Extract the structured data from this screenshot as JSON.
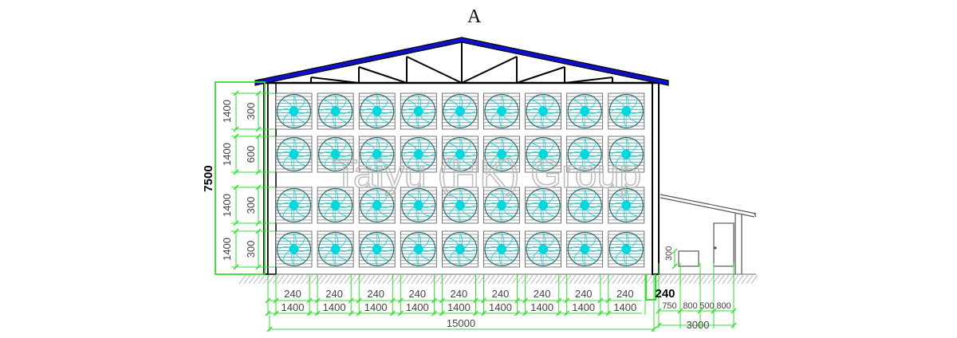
{
  "drawing": {
    "view_label": "A",
    "watermark": "Taiyu (HK) Group",
    "colors": {
      "roof": "#1010c8",
      "dimension": "#33dd33",
      "fan_blade": "#00d8e0",
      "fan_outline": "#2a6e70",
      "structure": "#000000",
      "louver": "#555555",
      "ground_hatch": "#999999",
      "watermark": "#b8b8b8"
    },
    "fan_grid": {
      "rows": 4,
      "columns": 9
    },
    "left_dimensions": {
      "overall_height": "7500",
      "rows": [
        {
          "fan_height": "1400",
          "gap": "300"
        },
        {
          "fan_height": "1400",
          "gap": "600"
        },
        {
          "fan_height": "1400",
          "gap": "300"
        },
        {
          "fan_height": "1400",
          "gap": "300"
        }
      ]
    },
    "bottom_dimensions": {
      "pillar_widths": [
        "240",
        "240",
        "240",
        "240",
        "240",
        "240",
        "240",
        "240",
        "240"
      ],
      "fan_widths": [
        "1400",
        "1400",
        "1400",
        "1400",
        "1400",
        "1400",
        "1400",
        "1400",
        "1400"
      ],
      "wall_thickness": "240",
      "overall_width": "15000"
    },
    "annex_dimensions": {
      "segments": [
        "750",
        "800",
        "500",
        "800"
      ],
      "overall_width": "3000",
      "window_sill_height": "300"
    }
  }
}
